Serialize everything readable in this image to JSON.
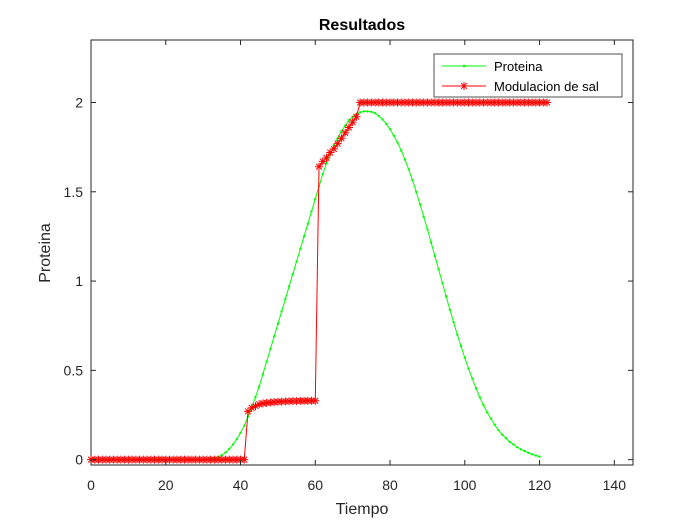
{
  "chart_data": {
    "type": "line",
    "title": "Resultados",
    "xlabel": "Tiempo",
    "ylabel": "Proteina",
    "xlim": [
      0,
      145
    ],
    "ylim": [
      -0.03,
      2.35
    ],
    "xticks": [
      "0",
      "20",
      "40",
      "60",
      "80",
      "100",
      "120",
      "140"
    ],
    "yticks": [
      "0",
      "0.5",
      "1",
      "1.5",
      "2"
    ],
    "xtick_values": [
      0,
      20,
      40,
      60,
      80,
      100,
      120,
      140
    ],
    "ytick_values": [
      0,
      0.5,
      1,
      1.5,
      2
    ],
    "grid": false,
    "legend_position": "top-right",
    "series": [
      {
        "name": "Proteina",
        "color": "#00ff00",
        "marker": "dot",
        "x_start": 0,
        "x_step": 1,
        "values": [
          0,
          0,
          0,
          0,
          0,
          0,
          0,
          0,
          0,
          0,
          0,
          0,
          0,
          0,
          0,
          0,
          0,
          0,
          0,
          0,
          0,
          0,
          0,
          0,
          0,
          0,
          0,
          0,
          0,
          0,
          0.001,
          0.002,
          0.004,
          0.008,
          0.015,
          0.025,
          0.04,
          0.06,
          0.085,
          0.115,
          0.15,
          0.19,
          0.24,
          0.29,
          0.35,
          0.41,
          0.48,
          0.55,
          0.62,
          0.69,
          0.76,
          0.83,
          0.9,
          0.97,
          1.04,
          1.11,
          1.18,
          1.25,
          1.32,
          1.39,
          1.46,
          1.53,
          1.6,
          1.66,
          1.71,
          1.76,
          1.8,
          1.84,
          1.87,
          1.9,
          1.92,
          1.935,
          1.945,
          1.95,
          1.95,
          1.948,
          1.94,
          1.925,
          1.905,
          1.88,
          1.85,
          1.815,
          1.775,
          1.73,
          1.68,
          1.625,
          1.565,
          1.5,
          1.43,
          1.36,
          1.29,
          1.215,
          1.14,
          1.065,
          0.99,
          0.915,
          0.84,
          0.77,
          0.7,
          0.635,
          0.57,
          0.51,
          0.455,
          0.4,
          0.35,
          0.305,
          0.265,
          0.23,
          0.195,
          0.165,
          0.14,
          0.12,
          0.1,
          0.085,
          0.07,
          0.058,
          0.048,
          0.038,
          0.03,
          0.023,
          0.017
        ]
      },
      {
        "name": "Modulacion de sal",
        "color": "#ff0000",
        "marker": "asterisk",
        "x_start": 0,
        "x_step": 1,
        "values": [
          0,
          0,
          0,
          0,
          0,
          0,
          0,
          0,
          0,
          0,
          0,
          0,
          0,
          0,
          0,
          0,
          0,
          0,
          0,
          0,
          0,
          0,
          0,
          0,
          0,
          0,
          0,
          0,
          0,
          0,
          0,
          0,
          0,
          0,
          0,
          0,
          0,
          0,
          0,
          0,
          0,
          0,
          0.27,
          0.29,
          0.3,
          0.31,
          0.315,
          0.318,
          0.32,
          0.322,
          0.324,
          0.325,
          0.326,
          0.327,
          0.328,
          0.328,
          0.329,
          0.329,
          0.33,
          0.33,
          0.33,
          1.64,
          1.67,
          1.69,
          1.72,
          1.74,
          1.77,
          1.8,
          1.83,
          1.86,
          1.89,
          1.92,
          2,
          2,
          2,
          2,
          2,
          2,
          2,
          2,
          2,
          2,
          2,
          2,
          2,
          2,
          2,
          2,
          2,
          2,
          2,
          2,
          2,
          2,
          2,
          2,
          2,
          2,
          2,
          2,
          2,
          2,
          2,
          2,
          2,
          2,
          2,
          2,
          2,
          2,
          2,
          2,
          2,
          2,
          2,
          2,
          2,
          2,
          2,
          2,
          2,
          2,
          2
        ]
      }
    ]
  }
}
